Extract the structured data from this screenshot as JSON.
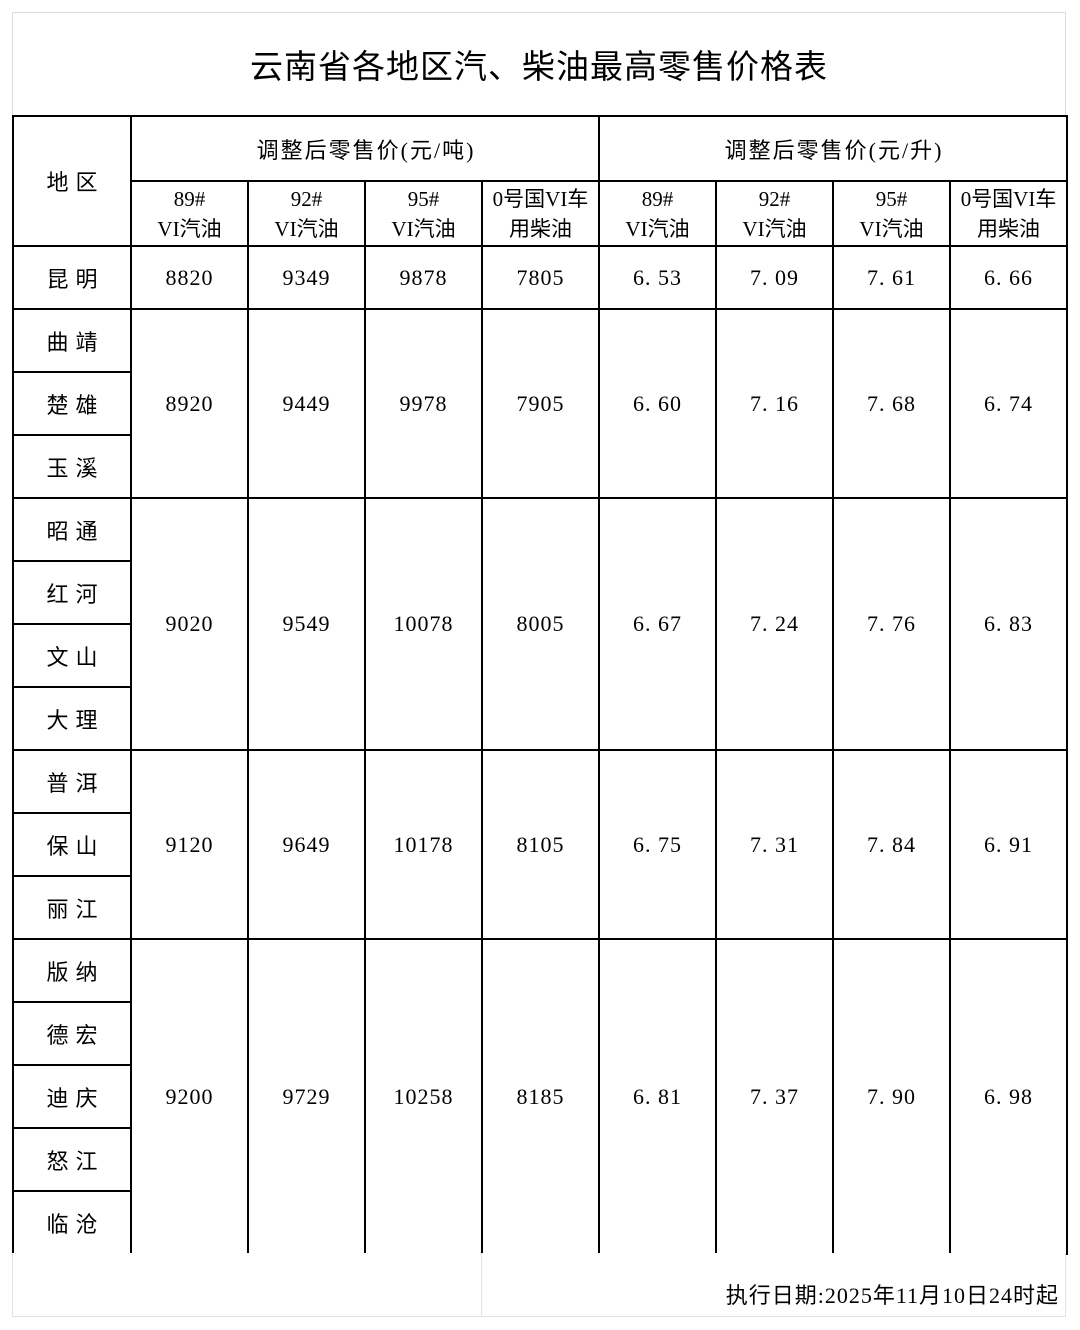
{
  "title": "云南省各地区汽、柴油最高零售价格表",
  "table": {
    "region_col_header": "地区",
    "group_headers": [
      "调整后零售价(元/吨)",
      "调整后零售价(元/升)"
    ],
    "sub_headers": [
      {
        "line1": "89#",
        "line2": "VI汽油"
      },
      {
        "line1": "92#",
        "line2": "VI汽油"
      },
      {
        "line1": "95#",
        "line2": "VI汽油"
      },
      {
        "line1": "0号国VI车",
        "line2": "用柴油"
      },
      {
        "line1": "89#",
        "line2": "VI汽油"
      },
      {
        "line1": "92#",
        "line2": "VI汽油"
      },
      {
        "line1": "95#",
        "line2": "VI汽油"
      },
      {
        "line1": "0号国VI车",
        "line2": "用柴油"
      }
    ],
    "groups": [
      {
        "regions": [
          "昆明"
        ],
        "values_per_ton": [
          "8820",
          "9349",
          "9878",
          "7805"
        ],
        "values_per_liter": [
          "6. 53",
          "7. 09",
          "7. 61",
          "6. 66"
        ]
      },
      {
        "regions": [
          "曲靖",
          "楚雄",
          "玉溪"
        ],
        "values_per_ton": [
          "8920",
          "9449",
          "9978",
          "7905"
        ],
        "values_per_liter": [
          "6. 60",
          "7. 16",
          "7. 68",
          "6. 74"
        ]
      },
      {
        "regions": [
          "昭通",
          "红河",
          "文山",
          "大理"
        ],
        "values_per_ton": [
          "9020",
          "9549",
          "10078",
          "8005"
        ],
        "values_per_liter": [
          "6. 67",
          "7. 24",
          "7. 76",
          "6. 83"
        ]
      },
      {
        "regions": [
          "普洱",
          "保山",
          "丽江"
        ],
        "values_per_ton": [
          "9120",
          "9649",
          "10178",
          "8105"
        ],
        "values_per_liter": [
          "6. 75",
          "7. 31",
          "7. 84",
          "6. 91"
        ]
      },
      {
        "regions": [
          "版纳",
          "德宏",
          "迪庆",
          "怒江",
          "临沧"
        ],
        "values_per_ton": [
          "9200",
          "9729",
          "10258",
          "8185"
        ],
        "values_per_liter": [
          "6. 81",
          "7. 37",
          "7. 90",
          "6. 98"
        ]
      }
    ]
  },
  "footer": {
    "execution_date": "执行日期:2025年11月10日24时起"
  }
}
